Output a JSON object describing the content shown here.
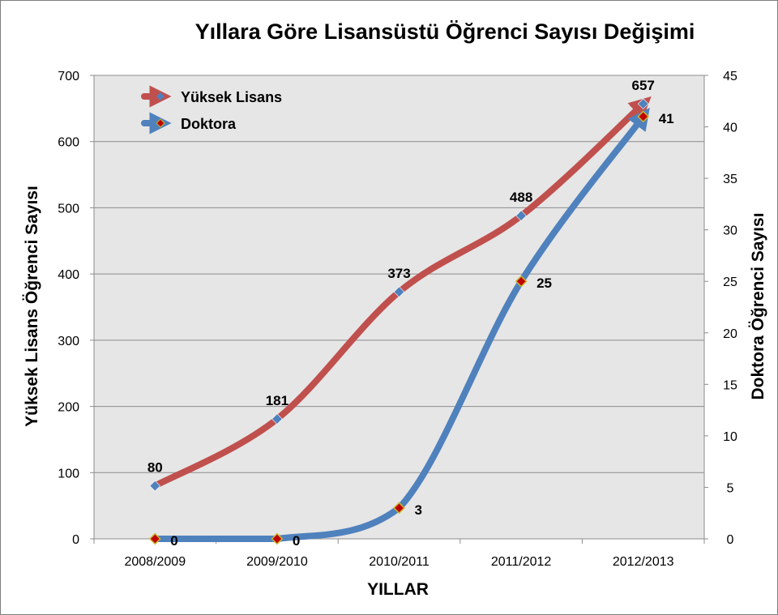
{
  "chart_data": {
    "type": "line",
    "title": "Yıllara  Göre Lisansüstü Öğrenci Sayısı Değişimi",
    "xlabel": "YILLAR",
    "ylabel": "Yüksek Lisans Öğrenci Sayısı",
    "y2label": "Doktora Öğrenci Sayısı",
    "categories": [
      "2008/2009",
      "2009/2010",
      "2010/2011",
      "2011/2012",
      "2012/2013"
    ],
    "ylim": [
      0,
      700
    ],
    "yticks": [
      "0",
      "100",
      "200",
      "300",
      "400",
      "500",
      "600",
      "700"
    ],
    "y2lim": [
      0,
      45
    ],
    "y2ticks": [
      "0",
      "5",
      "10",
      "15",
      "20",
      "25",
      "30",
      "35",
      "40",
      "45"
    ],
    "grid": true,
    "legend_position": "top-left",
    "series": [
      {
        "name": "Yüksek Lisans",
        "axis": "left",
        "values": [
          80,
          181,
          373,
          488,
          657
        ],
        "labels": [
          "80",
          "181",
          "373",
          "488",
          "657"
        ],
        "color": "#C0504D",
        "marker_color": "#4F81BD"
      },
      {
        "name": "Doktora",
        "axis": "right",
        "values": [
          0,
          0,
          3,
          25,
          41
        ],
        "labels": [
          "0",
          "0",
          "3",
          "25",
          "41"
        ],
        "color": "#4F81BD",
        "marker_color": "#C00000",
        "marker_border": "#C9B52A"
      }
    ],
    "plot_background": "#E6E6E6",
    "grid_color": "#8C8C8C"
  }
}
